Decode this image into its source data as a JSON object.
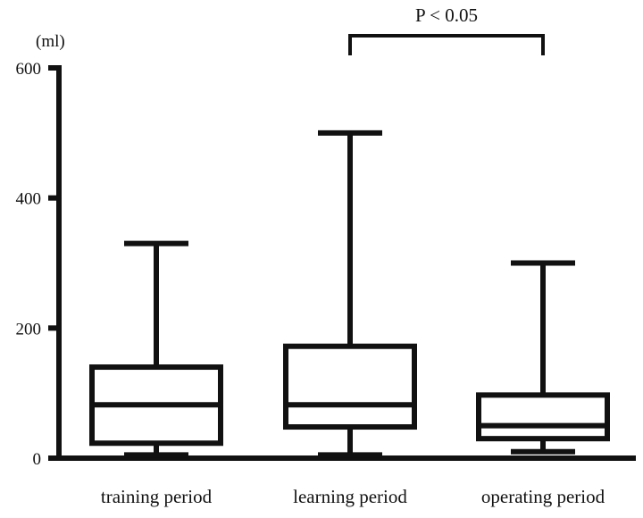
{
  "chart_data": {
    "type": "box",
    "categories": [
      "training period",
      "learning period",
      "operating period"
    ],
    "boxes": [
      {
        "category": "training period",
        "min": 5,
        "q1": 23,
        "median": 82,
        "q3": 140,
        "max": 330
      },
      {
        "category": "learning period",
        "min": 5,
        "q1": 48,
        "median": 82,
        "q3": 172,
        "max": 500
      },
      {
        "category": "operating period",
        "min": 10,
        "q1": 30,
        "median": 50,
        "q3": 97,
        "max": 300
      }
    ],
    "ylabel": "(ml)",
    "ylim": [
      0,
      600
    ],
    "yticks": [
      0,
      200,
      400,
      600
    ],
    "grid": false,
    "annotations": [
      {
        "text": "P < 0.05",
        "from": "learning period",
        "to": "operating period"
      }
    ],
    "colors": {
      "stroke": "#111111",
      "fill": "#ffffff"
    }
  }
}
